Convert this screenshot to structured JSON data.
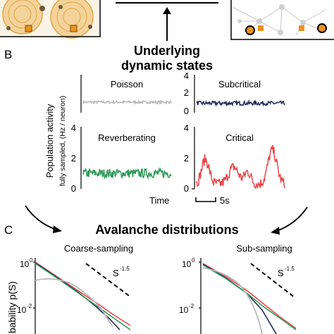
{
  "colors": {
    "poisson": "#b8b9b8",
    "subcritical": "#1e2a5a",
    "reverberating": "#2e9a5a",
    "critical": "#e8474a",
    "orange": "#e8931e",
    "net_line": "#c9c9c9",
    "net_node": "#cfcfcf"
  },
  "panel_b": {
    "letter": "B",
    "heading_line1": "Underlying",
    "heading_line2": "dynamic states",
    "y_label_line1": "Population activity",
    "y_label_line2": "fully sampled, (Hz / neuron)",
    "time_label": "Time",
    "scale_label": "5s",
    "tiles": [
      {
        "title": "Poisson",
        "color_key": "poisson",
        "ticks": [],
        "level": 1.0,
        "noise": 0.12
      },
      {
        "title": "Subcritical",
        "color_key": "subcritical",
        "ticks": [
          "4",
          "2",
          "0"
        ],
        "level": 1.0,
        "noise": 0.22
      },
      {
        "title": "Reverberating",
        "color_key": "reverberating",
        "ticks": [
          "4",
          "2",
          "0"
        ],
        "level": 1.0,
        "noise": 0.3
      },
      {
        "title": "Critical",
        "color_key": "critical",
        "ticks": [
          "4",
          "2",
          "0"
        ],
        "level": 0.9,
        "noise": 0.3
      }
    ]
  },
  "panel_c": {
    "letter": "C",
    "heading": "Avalanche distributions",
    "y_label": "obability p(S)",
    "y_ticks": [
      "10",
      "10"
    ],
    "y_tick_exponents": [
      "0",
      "-2"
    ],
    "slope_label": "S",
    "slope_exponent": "-1.5",
    "plots": [
      {
        "title": "Coarse-sampling",
        "show_y_ticks": true
      },
      {
        "title": "Sub-sampling",
        "show_y_ticks": true
      }
    ]
  },
  "icons": [
    "arrow-up-icon",
    "curved-arrow-down-right-icon",
    "curved-arrow-down-left-icon",
    "scale-bar-icon"
  ]
}
